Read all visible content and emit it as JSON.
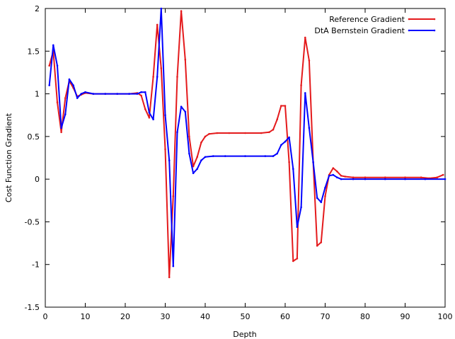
{
  "chart_data": {
    "type": "line",
    "title": "",
    "xlabel": "Depth",
    "ylabel": "Cost Function Gradient",
    "xlim": [
      0,
      100
    ],
    "ylim": [
      -1.5,
      2
    ],
    "xticks": [
      0,
      10,
      20,
      30,
      40,
      50,
      60,
      70,
      80,
      90,
      100
    ],
    "yticks": [
      -1.5,
      -1,
      -0.5,
      0,
      0.5,
      1,
      1.5,
      2
    ],
    "ytick_labels": [
      "-1.5",
      "-1",
      "-0.5",
      "0",
      "0.5",
      "1",
      "1.5",
      "2"
    ],
    "grid": false,
    "legend_position": "top-right",
    "series": [
      {
        "name": "Reference Gradient",
        "color": "#e41a1c",
        "points": [
          [
            1,
            1.33
          ],
          [
            2,
            1.5
          ],
          [
            3,
            0.9
          ],
          [
            4,
            0.55
          ],
          [
            5,
            0.95
          ],
          [
            6,
            1.15
          ],
          [
            7,
            1.07
          ],
          [
            8,
            0.97
          ],
          [
            9,
            0.99
          ],
          [
            10,
            1.01
          ],
          [
            12,
            1.0
          ],
          [
            15,
            1.0
          ],
          [
            18,
            1.0
          ],
          [
            21,
            1.0
          ],
          [
            23,
            1.01
          ],
          [
            24,
            0.98
          ],
          [
            25,
            0.82
          ],
          [
            26,
            0.72
          ],
          [
            27,
            1.2
          ],
          [
            28,
            1.81
          ],
          [
            29,
            1.3
          ],
          [
            30,
            0.35
          ],
          [
            31,
            -1.15
          ],
          [
            32,
            -0.2
          ],
          [
            33,
            1.2
          ],
          [
            34,
            1.97
          ],
          [
            35,
            1.4
          ],
          [
            36,
            0.5
          ],
          [
            37,
            0.15
          ],
          [
            38,
            0.26
          ],
          [
            39,
            0.43
          ],
          [
            40,
            0.5
          ],
          [
            41,
            0.53
          ],
          [
            43,
            0.54
          ],
          [
            46,
            0.54
          ],
          [
            50,
            0.54
          ],
          [
            54,
            0.54
          ],
          [
            56,
            0.55
          ],
          [
            57,
            0.58
          ],
          [
            58,
            0.7
          ],
          [
            59,
            0.86
          ],
          [
            60,
            0.86
          ],
          [
            61,
            0.2
          ],
          [
            62,
            -0.96
          ],
          [
            63,
            -0.93
          ],
          [
            64,
            1.1
          ],
          [
            65,
            1.66
          ],
          [
            66,
            1.39
          ],
          [
            67,
            0.2
          ],
          [
            68,
            -0.78
          ],
          [
            69,
            -0.74
          ],
          [
            70,
            -0.2
          ],
          [
            71,
            0.05
          ],
          [
            72,
            0.13
          ],
          [
            73,
            0.09
          ],
          [
            74,
            0.04
          ],
          [
            75,
            0.03
          ],
          [
            77,
            0.02
          ],
          [
            80,
            0.02
          ],
          [
            85,
            0.02
          ],
          [
            90,
            0.02
          ],
          [
            94,
            0.02
          ],
          [
            96,
            0.01
          ],
          [
            98,
            0.02
          ],
          [
            99.5,
            0.05
          ]
        ]
      },
      {
        "name": "DtA Bernstein Gradient",
        "color": "#0000ff",
        "points": [
          [
            1,
            1.1
          ],
          [
            2,
            1.57
          ],
          [
            3,
            1.33
          ],
          [
            4,
            0.6
          ],
          [
            5,
            0.76
          ],
          [
            6,
            1.17
          ],
          [
            7,
            1.1
          ],
          [
            8,
            0.95
          ],
          [
            9,
            1.0
          ],
          [
            10,
            1.02
          ],
          [
            12,
            1.0
          ],
          [
            15,
            1.0
          ],
          [
            18,
            1.0
          ],
          [
            21,
            1.0
          ],
          [
            23,
            1.0
          ],
          [
            24,
            1.02
          ],
          [
            25,
            1.02
          ],
          [
            26,
            0.78
          ],
          [
            27,
            0.7
          ],
          [
            28,
            1.2
          ],
          [
            29,
            2.0
          ],
          [
            30,
            0.75
          ],
          [
            31,
            0.22
          ],
          [
            32,
            -1.02
          ],
          [
            33,
            0.55
          ],
          [
            34,
            0.85
          ],
          [
            35,
            0.79
          ],
          [
            36,
            0.3
          ],
          [
            37,
            0.07
          ],
          [
            38,
            0.12
          ],
          [
            39,
            0.22
          ],
          [
            40,
            0.26
          ],
          [
            42,
            0.27
          ],
          [
            45,
            0.27
          ],
          [
            50,
            0.27
          ],
          [
            55,
            0.27
          ],
          [
            57,
            0.27
          ],
          [
            58,
            0.3
          ],
          [
            59,
            0.4
          ],
          [
            60,
            0.44
          ],
          [
            61,
            0.49
          ],
          [
            62,
            0.12
          ],
          [
            63,
            -0.56
          ],
          [
            64,
            -0.33
          ],
          [
            65,
            1.01
          ],
          [
            66,
            0.6
          ],
          [
            67,
            0.2
          ],
          [
            68,
            -0.22
          ],
          [
            69,
            -0.27
          ],
          [
            70,
            -0.1
          ],
          [
            71,
            0.04
          ],
          [
            72,
            0.05
          ],
          [
            73,
            0.02
          ],
          [
            74,
            0.0
          ],
          [
            77,
            0.0
          ],
          [
            80,
            0.0
          ],
          [
            85,
            0.0
          ],
          [
            90,
            0.0
          ],
          [
            95,
            0.0
          ],
          [
            100,
            0.0
          ]
        ]
      }
    ]
  }
}
